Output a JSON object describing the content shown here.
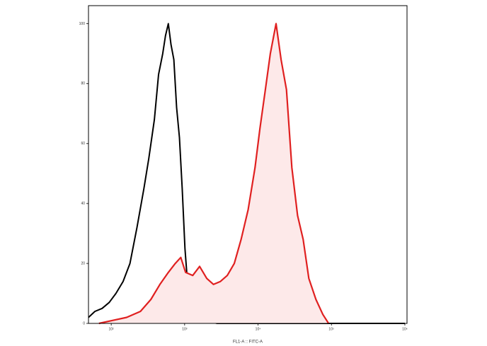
{
  "chart_data": {
    "type": "histogram-overlay",
    "x_label": "FL1-A :: FITC-A",
    "xscale": "log",
    "xlim": [
      49,
      1070000
    ],
    "ylim": [
      0,
      106
    ],
    "xticks": [
      {
        "value": 100,
        "label": "10²"
      },
      {
        "value": 1000,
        "label": "10³"
      },
      {
        "value": 10000,
        "label": "10⁴"
      },
      {
        "value": 100000,
        "label": "10⁵"
      },
      {
        "value": 1000000,
        "label": "10⁶"
      }
    ],
    "yticks": [
      0,
      20,
      40,
      60,
      80,
      100
    ],
    "series": [
      {
        "color": "#000000",
        "fill": "none",
        "x": [
          49,
          60,
          75,
          94,
          116,
          145,
          180,
          224,
          279,
          325,
          387,
          441,
          503,
          549,
          599,
          653,
          713,
          778,
          850,
          927,
          1010,
          1100,
          1260,
          1500,
          1860,
          2760,
          1000000
        ],
        "values": [
          2,
          4,
          5,
          7,
          10,
          14,
          20,
          32,
          45,
          55,
          68,
          83,
          90,
          96,
          100,
          93,
          88,
          72,
          62,
          45,
          25,
          13,
          6,
          2,
          1,
          0,
          0
        ]
      },
      {
        "color": "#e02020",
        "fill": "#fde9e9",
        "x": [
          68,
          104,
          162,
          250,
          347,
          460,
          599,
          745,
          887,
          1030,
          1290,
          1600,
          2000,
          2470,
          3070,
          3810,
          4750,
          5880,
          7330,
          9100,
          10600,
          12600,
          14700,
          17600,
          20600,
          24400,
          28900,
          34600,
          41200,
          49200,
          61400,
          76300,
          91500
        ],
        "values": [
          0,
          1,
          2,
          4,
          8,
          13,
          17,
          20,
          22,
          17,
          16,
          19,
          15,
          13,
          14,
          16,
          20,
          28,
          38,
          52,
          65,
          78,
          90,
          100,
          88,
          78,
          52,
          36,
          28,
          15,
          8,
          3,
          0
        ]
      }
    ]
  }
}
